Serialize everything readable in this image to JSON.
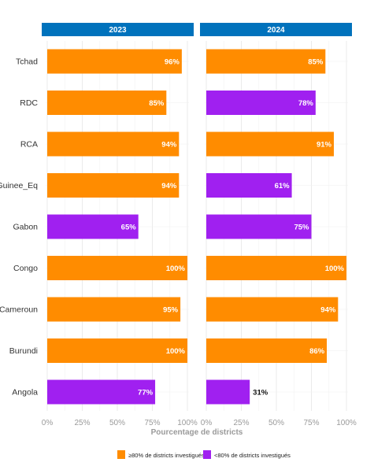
{
  "chart_data": {
    "type": "bar",
    "orientation": "horizontal",
    "facets": [
      "2023",
      "2024"
    ],
    "categories": [
      "Tchad",
      "RDC",
      "RCA",
      "Guinee_Eq",
      "Gabon",
      "Congo",
      "Cameroun",
      "Burundi",
      "Angola"
    ],
    "series": [
      {
        "name": "2023",
        "values": [
          96,
          85,
          94,
          94,
          65,
          100,
          95,
          100,
          77
        ]
      },
      {
        "name": "2024",
        "values": [
          85,
          78,
          91,
          61,
          75,
          100,
          94,
          86,
          31
        ]
      }
    ],
    "value_labels": {
      "2023": [
        "96%",
        "85%",
        "94%",
        "94%",
        "65%",
        "100%",
        "95%",
        "100%",
        "77%"
      ],
      "2024": [
        "85%",
        "78%",
        "91%",
        "61%",
        "75%",
        "100%",
        "94%",
        "86%",
        "31%"
      ]
    },
    "xlabel": "Pourcentage de districts",
    "xlim": [
      0,
      100
    ],
    "xticks": [
      0,
      25,
      50,
      75,
      100
    ],
    "xtick_labels": [
      "0%",
      "25%",
      "50%",
      "75%",
      "100%"
    ],
    "threshold": 80,
    "legend": [
      {
        "label": "≥80% de districts investigués",
        "color": "#ff8c00"
      },
      {
        "label": "<80% de districts investigués",
        "color": "#a020f0"
      }
    ],
    "legend_position": "bottom",
    "colors": {
      "above": "#ff8c00",
      "below": "#a020f0",
      "header": "#0072bc"
    },
    "grid": true
  }
}
